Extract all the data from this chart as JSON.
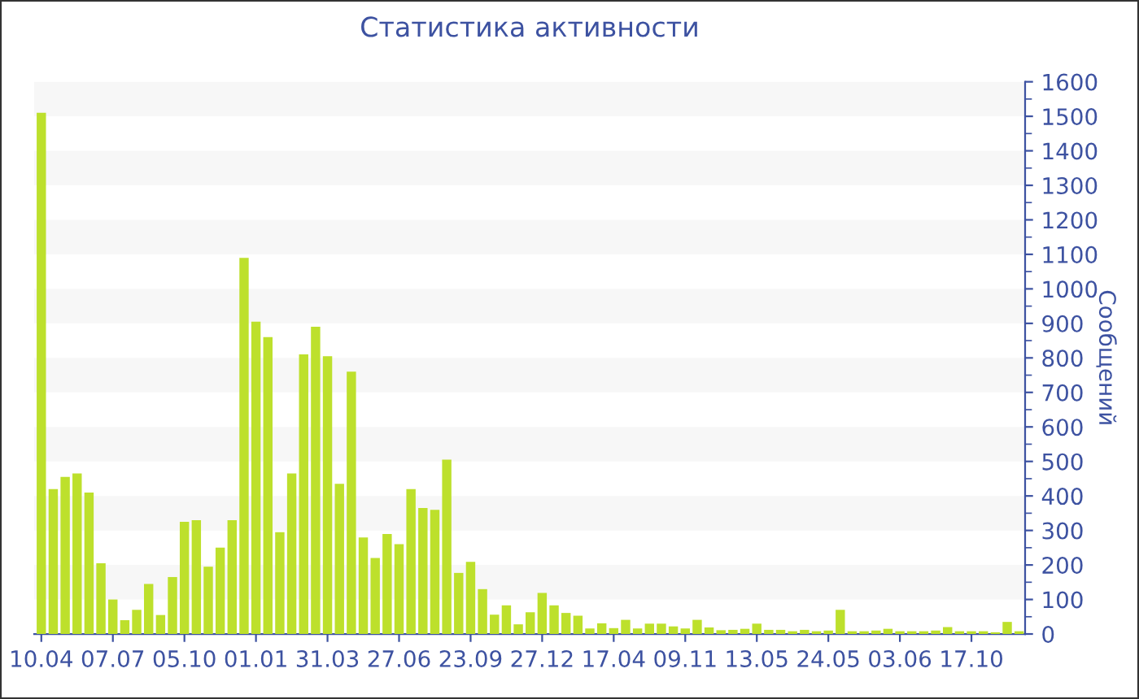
{
  "chart_data": {
    "type": "bar",
    "title": "Статистика активности",
    "ylabel": "Сообщений",
    "categories": [
      "10.04",
      null,
      null,
      null,
      null,
      null,
      "07.07",
      null,
      null,
      null,
      null,
      null,
      "05.10",
      null,
      null,
      null,
      null,
      null,
      "01.01",
      null,
      null,
      null,
      null,
      null,
      "31.03",
      null,
      null,
      null,
      null,
      null,
      "27.06",
      null,
      null,
      null,
      null,
      null,
      "23.09",
      null,
      null,
      null,
      null,
      null,
      "27.12",
      null,
      null,
      null,
      null,
      null,
      "17.04",
      null,
      null,
      null,
      null,
      null,
      "09.11",
      null,
      null,
      null,
      null,
      null,
      "13.05",
      null,
      null,
      null,
      null,
      null,
      "24.05",
      null,
      null,
      null,
      null,
      null,
      "03.06",
      null,
      null,
      null,
      null,
      null,
      "17.10",
      null,
      null,
      null,
      null
    ],
    "values": [
      1510,
      420,
      455,
      465,
      410,
      205,
      100,
      40,
      70,
      145,
      55,
      165,
      325,
      330,
      195,
      250,
      330,
      1090,
      905,
      860,
      295,
      465,
      810,
      890,
      805,
      435,
      760,
      280,
      220,
      290,
      260,
      420,
      365,
      360,
      505,
      177,
      209,
      130,
      56,
      83,
      28,
      63,
      119,
      83,
      61,
      53,
      16,
      31,
      17,
      41,
      16,
      30,
      30,
      22,
      16,
      41,
      19,
      11,
      12,
      15,
      30,
      12,
      12,
      8,
      12,
      8,
      10,
      70,
      8,
      8,
      10,
      15,
      8,
      8,
      8,
      10,
      20,
      8,
      8,
      8,
      5,
      35,
      8
    ],
    "color": "#bde02c",
    "ylim": [
      0,
      1600
    ],
    "yticks": [
      0,
      100,
      200,
      300,
      400,
      500,
      600,
      700,
      800,
      900,
      1000,
      1100,
      1200,
      1300,
      1400,
      1500,
      1600
    ],
    "bands": [
      {
        "axis": "y",
        "from": 100,
        "to": 200,
        "color": "#f7f7f7"
      },
      {
        "axis": "y",
        "from": 300,
        "to": 400,
        "color": "#f7f7f7"
      },
      {
        "axis": "y",
        "from": 500,
        "to": 600,
        "color": "#f7f7f7"
      },
      {
        "axis": "y",
        "from": 700,
        "to": 800,
        "color": "#f7f7f7"
      },
      {
        "axis": "y",
        "from": 900,
        "to": 1000,
        "color": "#f7f7f7"
      },
      {
        "axis": "y",
        "from": 1100,
        "to": 1200,
        "color": "#f7f7f7"
      },
      {
        "axis": "y",
        "from": 1300,
        "to": 1400,
        "color": "#f7f7f7"
      },
      {
        "axis": "y",
        "from": 1500,
        "to": 1600,
        "color": "#f7f7f7"
      }
    ]
  }
}
